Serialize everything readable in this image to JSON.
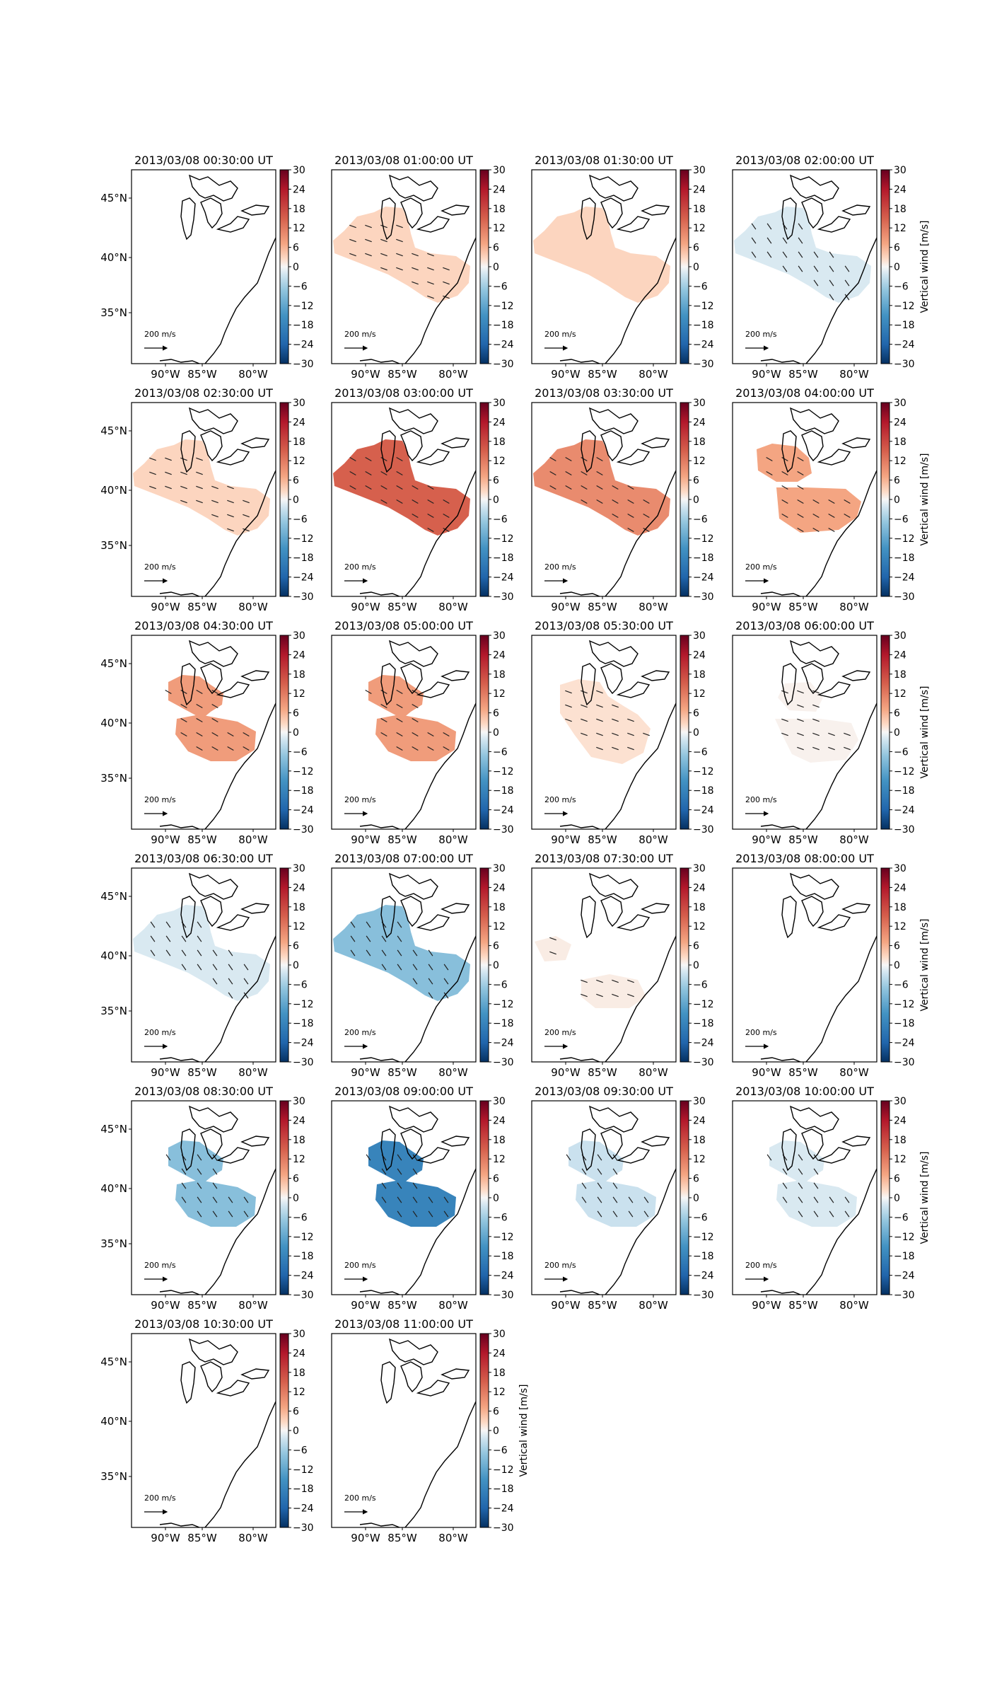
{
  "figure": {
    "colorbar_label": "Vertical wind [m/s]",
    "colorbar_ticks": [
      "30",
      "24",
      "18",
      "12",
      "6",
      "0",
      "−6",
      "−12",
      "−18",
      "−24",
      "−30"
    ],
    "lon_ticks": [
      "90°W",
      "85°W",
      "80°W"
    ],
    "lat_ticks": [
      "45°N",
      "40°N",
      "35°N"
    ],
    "reference_arrow_label": "200 m/s",
    "colors": {
      "positive_max": "#67001f",
      "negative_max": "#053061",
      "zero": "#f7f7f7",
      "coast": "#000000"
    }
  },
  "chart_data": {
    "type": "heatmap",
    "title": "",
    "xlabel": "",
    "ylabel": "",
    "colorbar_label": "Vertical wind [m/s]",
    "colorbar_range": [
      -30,
      30
    ],
    "panels": [
      {
        "time": "2013/03/08 00:30:00 UT",
        "vertical_wind": 0,
        "region": "none",
        "arrows": false
      },
      {
        "time": "2013/03/08 01:00:00 UT",
        "vertical_wind": 3,
        "region": "large",
        "arrows": true
      },
      {
        "time": "2013/03/08 01:30:00 UT",
        "vertical_wind": 3,
        "region": "large",
        "arrows": false
      },
      {
        "time": "2013/03/08 02:00:00 UT",
        "vertical_wind": -2,
        "region": "large",
        "arrows": true
      },
      {
        "time": "2013/03/08 02:30:00 UT",
        "vertical_wind": 3,
        "region": "large",
        "arrows": true
      },
      {
        "time": "2013/03/08 03:00:00 UT",
        "vertical_wind": 15,
        "region": "large",
        "arrows": true
      },
      {
        "time": "2013/03/08 03:30:00 UT",
        "vertical_wind": 10,
        "region": "large",
        "arrows": true
      },
      {
        "time": "2013/03/08 04:00:00 UT",
        "vertical_wind": 7,
        "region": "two_lobe_east",
        "arrows": true
      },
      {
        "time": "2013/03/08 04:30:00 UT",
        "vertical_wind": 8,
        "region": "two_lobe",
        "arrows": true
      },
      {
        "time": "2013/03/08 05:00:00 UT",
        "vertical_wind": 8,
        "region": "two_lobe",
        "arrows": true
      },
      {
        "time": "2013/03/08 05:30:00 UT",
        "vertical_wind": 2,
        "region": "medium",
        "arrows": true
      },
      {
        "time": "2013/03/08 06:00:00 UT",
        "vertical_wind": 0.5,
        "region": "scattered",
        "arrows": true
      },
      {
        "time": "2013/03/08 06:30:00 UT",
        "vertical_wind": -2,
        "region": "large",
        "arrows": true
      },
      {
        "time": "2013/03/08 07:00:00 UT",
        "vertical_wind": -8,
        "region": "large",
        "arrows": true
      },
      {
        "time": "2013/03/08 07:30:00 UT",
        "vertical_wind": 1,
        "region": "fragments",
        "arrows": true
      },
      {
        "time": "2013/03/08 08:00:00 UT",
        "vertical_wind": 0,
        "region": "none",
        "arrows": false
      },
      {
        "time": "2013/03/08 08:30:00 UT",
        "vertical_wind": -8,
        "region": "two_lobe",
        "arrows": true
      },
      {
        "time": "2013/03/08 09:00:00 UT",
        "vertical_wind": -18,
        "region": "two_lobe",
        "arrows": true
      },
      {
        "time": "2013/03/08 09:30:00 UT",
        "vertical_wind": -3,
        "region": "two_lobe",
        "arrows": true
      },
      {
        "time": "2013/03/08 10:00:00 UT",
        "vertical_wind": -2,
        "region": "two_lobe",
        "arrows": true
      },
      {
        "time": "2013/03/08 10:30:00 UT",
        "vertical_wind": 0,
        "region": "none",
        "arrows": false
      },
      {
        "time": "2013/03/08 11:00:00 UT",
        "vertical_wind": 0,
        "region": "none",
        "arrows": false
      }
    ]
  }
}
